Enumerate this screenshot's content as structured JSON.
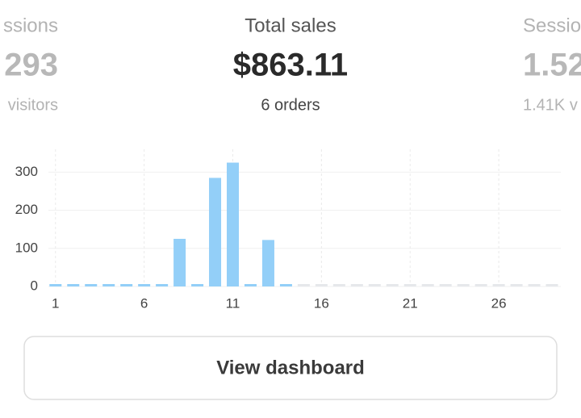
{
  "cards": [
    {
      "label": "ssions",
      "value": "293",
      "sub": "visitors"
    },
    {
      "label": "Total sales",
      "value": "$863.11",
      "sub": "6 orders"
    },
    {
      "label": "Sessio",
      "value": "1.52",
      "sub": "1.41K v"
    }
  ],
  "chart_data": {
    "type": "bar",
    "x": [
      1,
      2,
      3,
      4,
      5,
      6,
      7,
      8,
      9,
      10,
      11,
      12,
      13,
      14,
      15,
      16,
      17,
      18,
      19,
      20,
      21,
      22,
      23,
      24,
      25,
      26,
      27,
      28,
      29
    ],
    "values": [
      0,
      0,
      0,
      0,
      0,
      0,
      0,
      125,
      0,
      285,
      325,
      0,
      122,
      0,
      null,
      null,
      null,
      null,
      null,
      null,
      null,
      null,
      null,
      null,
      null,
      null,
      null,
      null,
      null
    ],
    "color": "#93cff8",
    "xlim": [
      0.6,
      29.5
    ],
    "xticks": [
      1,
      6,
      11,
      16,
      21,
      26
    ],
    "ylim": [
      0,
      360
    ],
    "yticks": [
      0,
      100,
      200,
      300
    ],
    "grid": true
  },
  "button": {
    "label": "View dashboard"
  }
}
